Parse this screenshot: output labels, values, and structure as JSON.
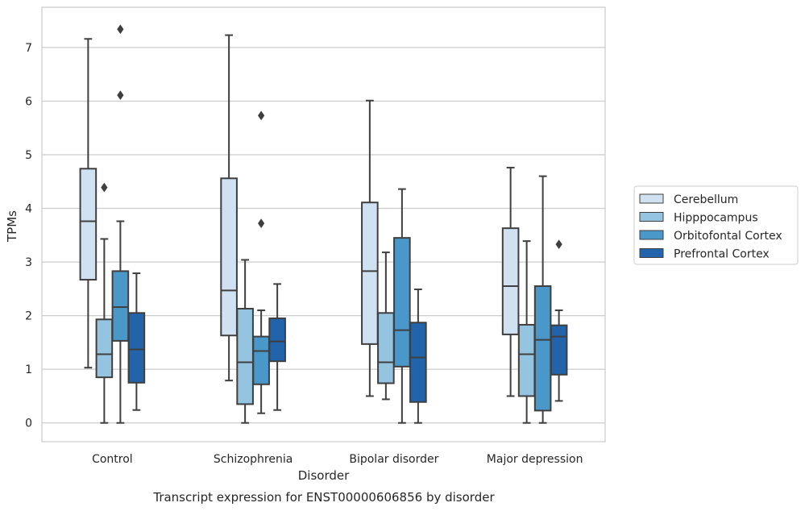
{
  "chart_data": {
    "type": "boxplot",
    "title": "Transcript expression for ENST00000606856 by disorder",
    "xlabel": "Disorder",
    "ylabel": "TPMs",
    "ylim": [
      -0.35,
      7.75
    ],
    "yticks": [
      "0",
      "1",
      "2",
      "3",
      "4",
      "5",
      "6",
      "7"
    ],
    "grid": "horizontal",
    "legend_position": "right",
    "categories": [
      "Control",
      "Schizophrenia",
      "Bipolar disorder",
      "Major depression"
    ],
    "series": [
      {
        "name": "Cerebellum",
        "color": "#d0e1f2",
        "boxes": [
          {
            "min": 1.03,
            "q1": 2.67,
            "median": 3.76,
            "q3": 4.74,
            "max": 7.16,
            "outliers": []
          },
          {
            "min": 0.79,
            "q1": 1.63,
            "median": 2.47,
            "q3": 4.56,
            "max": 7.23,
            "outliers": []
          },
          {
            "min": 0.5,
            "q1": 1.47,
            "median": 2.83,
            "q3": 4.11,
            "max": 6.01,
            "outliers": []
          },
          {
            "min": 0.5,
            "q1": 1.65,
            "median": 2.55,
            "q3": 3.63,
            "max": 4.76,
            "outliers": []
          }
        ]
      },
      {
        "name": "Hipppocampus",
        "color": "#94c4df",
        "boxes": [
          {
            "min": 0.0,
            "q1": 0.85,
            "median": 1.28,
            "q3": 1.93,
            "max": 3.43,
            "outliers": [
              4.39
            ]
          },
          {
            "min": 0.0,
            "q1": 0.35,
            "median": 1.13,
            "q3": 2.13,
            "max": 3.04,
            "outliers": []
          },
          {
            "min": 0.44,
            "q1": 0.74,
            "median": 1.13,
            "q3": 2.05,
            "max": 3.18,
            "outliers": []
          },
          {
            "min": 0.0,
            "q1": 0.5,
            "median": 1.28,
            "q3": 1.83,
            "max": 3.39,
            "outliers": []
          }
        ]
      },
      {
        "name": "Orbitofontal Cortex",
        "color": "#4a98c9",
        "boxes": [
          {
            "min": 0.0,
            "q1": 1.53,
            "median": 2.16,
            "q3": 2.83,
            "max": 3.76,
            "outliers": [
              6.11,
              7.34
            ]
          },
          {
            "min": 0.18,
            "q1": 0.72,
            "median": 1.34,
            "q3": 1.61,
            "max": 2.1,
            "outliers": [
              3.72,
              5.73
            ]
          },
          {
            "min": 0.0,
            "q1": 1.05,
            "median": 1.73,
            "q3": 3.45,
            "max": 4.36,
            "outliers": []
          },
          {
            "min": 0.0,
            "q1": 0.23,
            "median": 1.55,
            "q3": 2.55,
            "max": 4.6,
            "outliers": []
          }
        ]
      },
      {
        "name": "Prefrontal Cortex",
        "color": "#2164ab",
        "boxes": [
          {
            "min": 0.24,
            "q1": 0.75,
            "median": 1.37,
            "q3": 2.05,
            "max": 2.79,
            "outliers": []
          },
          {
            "min": 0.24,
            "q1": 1.15,
            "median": 1.52,
            "q3": 1.95,
            "max": 2.59,
            "outliers": []
          },
          {
            "min": 0.0,
            "q1": 0.39,
            "median": 1.22,
            "q3": 1.87,
            "max": 2.49,
            "outliers": []
          },
          {
            "min": 0.41,
            "q1": 0.9,
            "median": 1.61,
            "q3": 1.82,
            "max": 2.1,
            "outliers": [
              3.33
            ]
          }
        ]
      }
    ]
  }
}
